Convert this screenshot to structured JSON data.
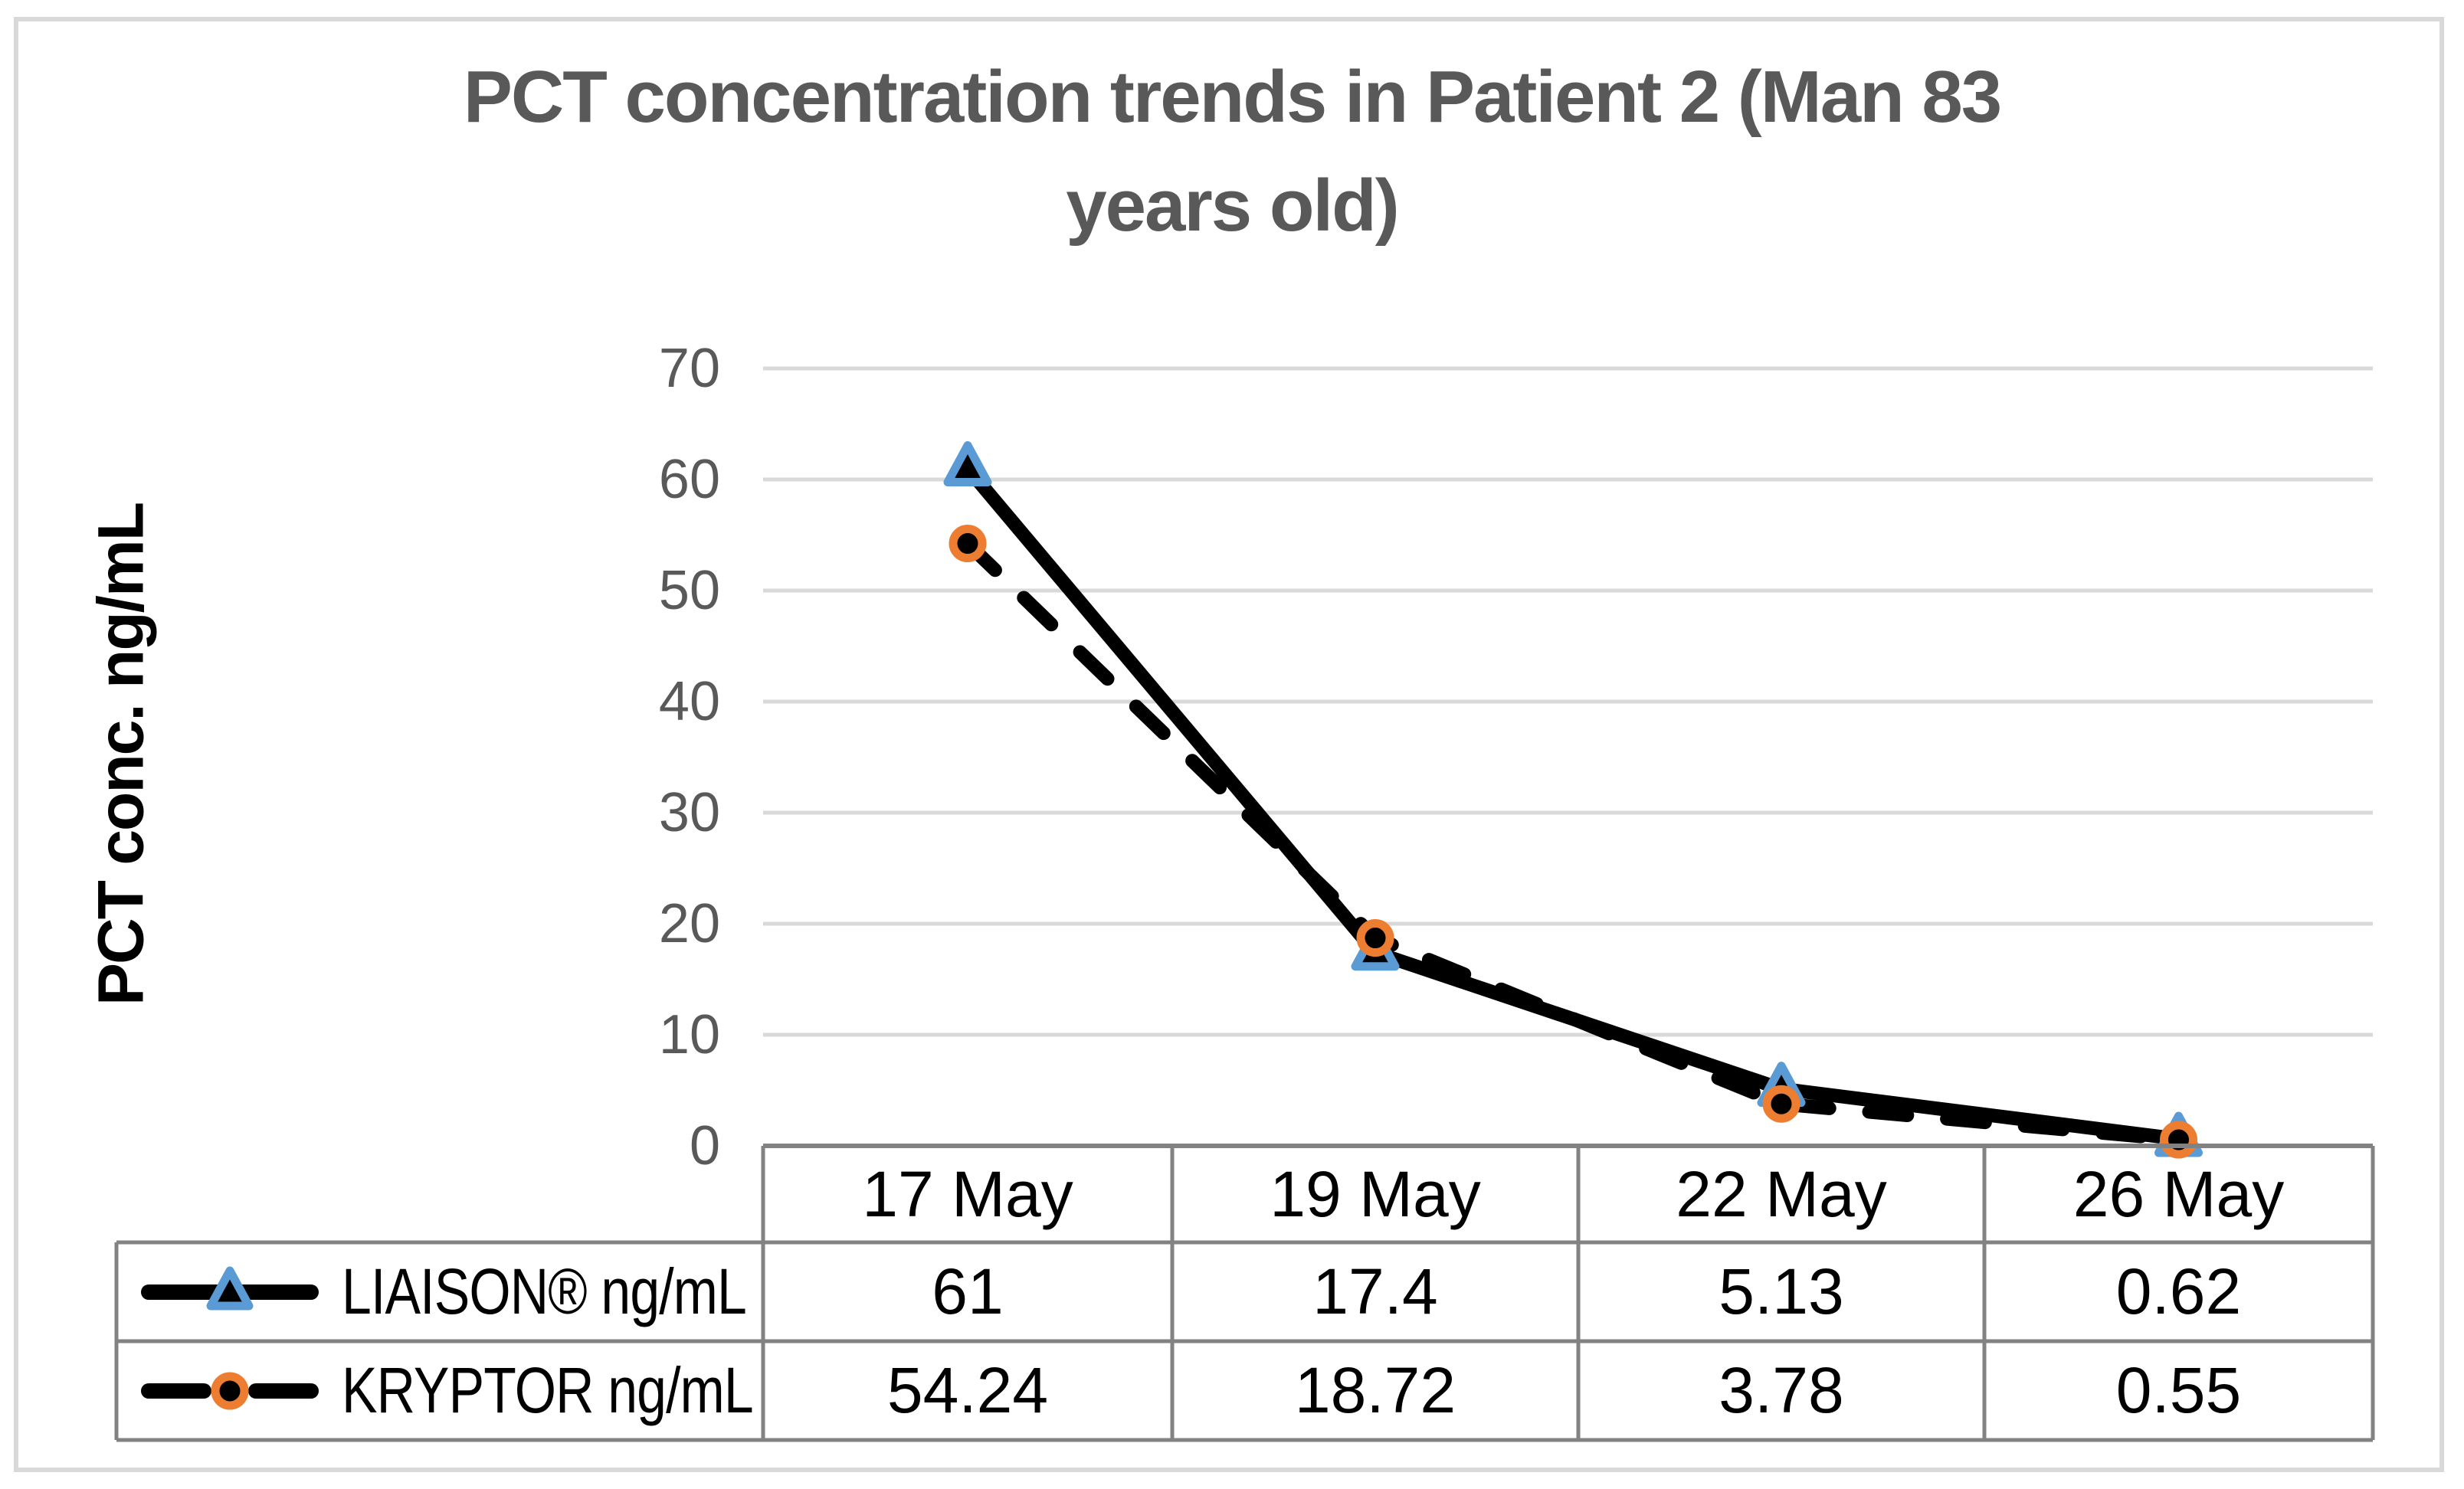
{
  "figure": {
    "title": "PCT concentration trends in Patient  2 (Man 83\nyears old)",
    "title_color": "#595959",
    "outer_border_color": "#D9D9D9"
  },
  "chart_data": {
    "type": "line",
    "title": "PCT concentration trends in Patient  2 (Man 83 years old)",
    "categories": [
      "17 May",
      "19 May",
      "22 May",
      "26 May"
    ],
    "series": [
      {
        "name": "LIAISON® ng/mL",
        "values": [
          61,
          17.4,
          5.13,
          0.62
        ],
        "line_style": "solid",
        "line_color": "#000000",
        "marker": "triangle",
        "marker_fill": "#000000",
        "marker_color": "#5B9BD5"
      },
      {
        "name": "KRYPTOR ng/mL",
        "values": [
          54.24,
          18.72,
          3.78,
          0.55
        ],
        "line_style": "dashed",
        "line_color": "#000000",
        "marker": "circle",
        "marker_fill": "#000000",
        "marker_color": "#ED7D31"
      }
    ],
    "xlabel": "",
    "ylabel": "PCT conc. ng/mL",
    "ylim": [
      0,
      70
    ],
    "yticks": [
      0,
      10,
      20,
      30,
      40,
      50,
      60,
      70
    ],
    "grid": true,
    "gridline_color": "#D9D9D9",
    "tick_label_color": "#595959",
    "legend_position": "data-table-left"
  },
  "table": {
    "header": [
      "17 May",
      "19 May",
      "22 May",
      "26 May"
    ],
    "rows": [
      {
        "label": "LIAISON® ng/mL",
        "values": [
          "61",
          "17.4",
          "5.13",
          "0.62"
        ]
      },
      {
        "label": "KRYPTOR ng/mL",
        "values": [
          "54.24",
          "18.72",
          "3.78",
          "0.55"
        ]
      }
    ],
    "border_color": "#828282"
  }
}
